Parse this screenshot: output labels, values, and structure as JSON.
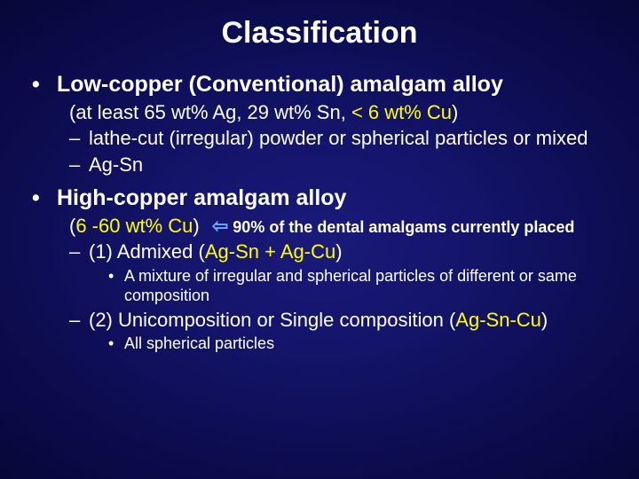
{
  "colors": {
    "background_center": "#1a1a7a",
    "background_edge": "#050530",
    "text": "#ffffff",
    "highlight_yellow": "#ffff00",
    "accent_blue": "#66aaff"
  },
  "fontsizes": {
    "title": 34,
    "heading": 25,
    "body": 22,
    "yellow_paren": 22,
    "arrow_note": 18,
    "sub_bullet": 18
  },
  "title": "Classification",
  "section1": {
    "heading": "Low-copper (Conventional) amalgam alloy",
    "paren_prefix": "(at least 65 wt% Ag, 29 wt% Sn, ",
    "paren_yellow": "< 6 wt% Cu",
    "paren_suffix": ")",
    "dash1": "lathe-cut (irregular) powder or spherical particles or mixed",
    "dash2": "Ag-Sn"
  },
  "section2": {
    "heading": "High-copper amalgam alloy",
    "paren_prefix": "(",
    "paren_yellow": "6 -60 wt% Cu",
    "paren_suffix": ")",
    "arrow": "⇦",
    "arrow_note": "90% of the dental amalgams currently placed",
    "dash1_pre": "(1) Admixed (",
    "dash1_yellow": "Ag-Sn + Ag-Cu",
    "dash1_post": ")",
    "dash1_sub": "A mixture of irregular and spherical particles of different or same composition",
    "dash2_pre": "(2) Unicomposition or Single composition (",
    "dash2_yellow": "Ag-Sn-Cu",
    "dash2_post": ")",
    "dash2_sub": "All spherical particles"
  }
}
